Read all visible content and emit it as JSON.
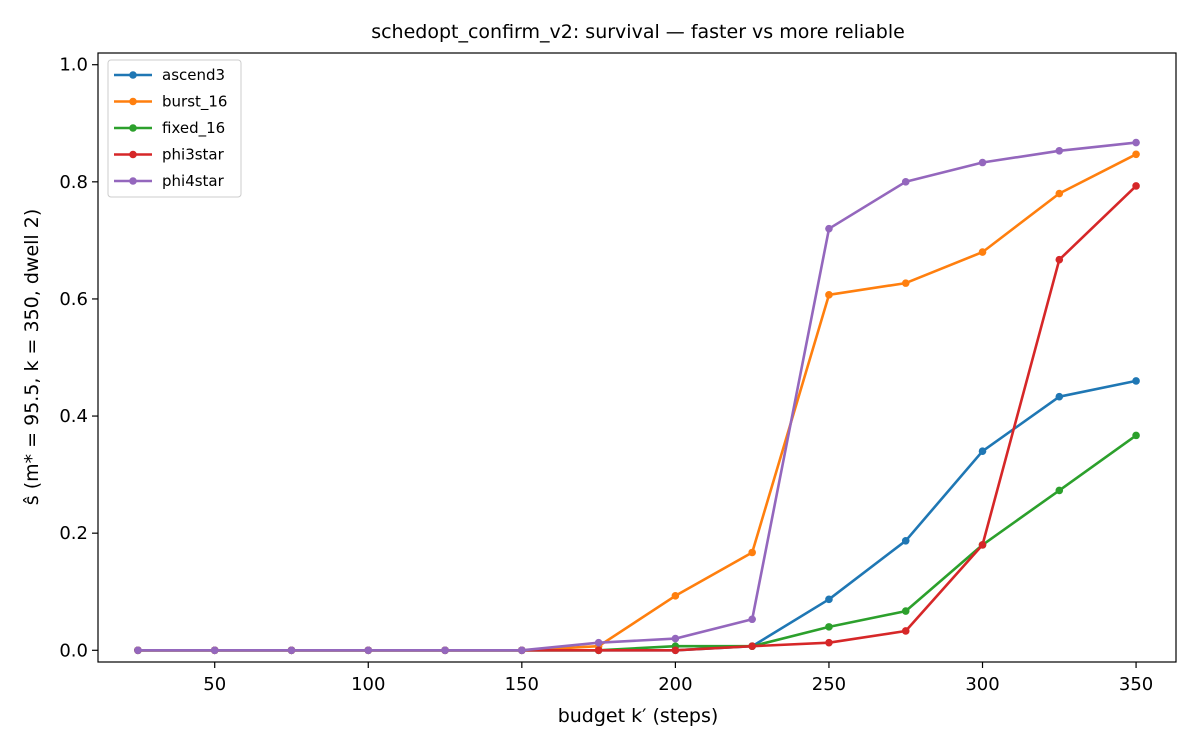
{
  "chart_data": {
    "type": "line",
    "title": "schedopt_confirm_v2: survival — faster vs more reliable",
    "xlabel": "budget k′ (steps)",
    "ylabel": "ŝ (m* = 95.5, k = 350, dwell 2)",
    "xlim": [
      12,
      363
    ],
    "ylim": [
      -0.02,
      1.02
    ],
    "xticks": [
      50,
      100,
      150,
      200,
      250,
      300,
      350
    ],
    "yticks": [
      0.0,
      0.2,
      0.4,
      0.6,
      0.8,
      1.0
    ],
    "grid": false,
    "legend_position": "top-left",
    "x": [
      25,
      50,
      75,
      100,
      125,
      150,
      175,
      200,
      225,
      250,
      275,
      300,
      325,
      350
    ],
    "series": [
      {
        "name": "ascend3",
        "color": "#1f77b4",
        "values": [
          0,
          0,
          0,
          0,
          0,
          0,
          0,
          0.0,
          0.007,
          0.087,
          0.187,
          0.34,
          0.433,
          0.46
        ]
      },
      {
        "name": "burst_16",
        "color": "#ff7f0e",
        "values": [
          0,
          0,
          0,
          0,
          0,
          0,
          0.007,
          0.093,
          0.167,
          0.607,
          0.627,
          0.68,
          0.78,
          0.847
        ]
      },
      {
        "name": "fixed_16",
        "color": "#2ca02c",
        "values": [
          0,
          0,
          0,
          0,
          0,
          0,
          0,
          0.007,
          0.007,
          0.04,
          0.067,
          0.18,
          0.273,
          0.367
        ]
      },
      {
        "name": "phi3star",
        "color": "#d62728",
        "values": [
          0,
          0,
          0,
          0,
          0,
          0,
          0,
          0,
          0.007,
          0.013,
          0.033,
          0.18,
          0.667,
          0.793
        ]
      },
      {
        "name": "phi4star",
        "color": "#9467bd",
        "values": [
          0,
          0,
          0,
          0,
          0,
          0,
          0.013,
          0.02,
          0.053,
          0.72,
          0.8,
          0.833,
          0.853,
          0.867
        ]
      }
    ]
  }
}
